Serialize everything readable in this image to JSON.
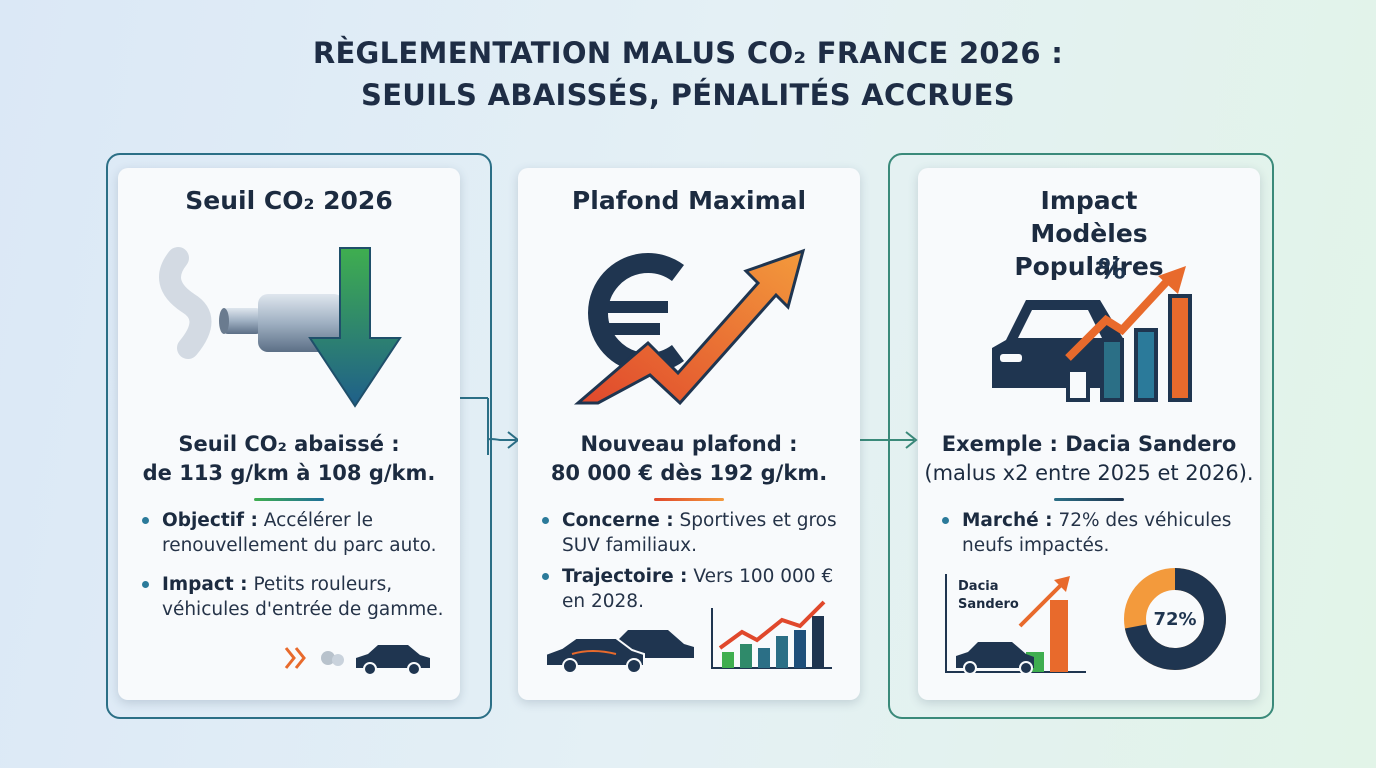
{
  "header": {
    "title_line1": "RÈGLEMENTATION MALUS CO₂ FRANCE 2026 :",
    "title_line2": "SEUILS ABAISSÉS, PÉNALITÉS ACCRUES"
  },
  "cards": [
    {
      "title": "Seuil CO₂ 2026",
      "headline": [
        "Seuil CO₂ abaissé :",
        "de 113 g/km à 108 g/km."
      ],
      "bullets": [
        {
          "label": "Objectif :",
          "text": "Accélérer le renouvellement du parc auto."
        },
        {
          "label": "Impact :",
          "text": "Petits rouleurs, véhicules d'entrée de gamme."
        }
      ]
    },
    {
      "title": "Plafond Maximal",
      "headline": [
        "Nouveau plafond :",
        "80 000 € dès 192 g/km."
      ],
      "bullets": [
        {
          "label": "Concerne :",
          "text": "Sportives et gros SUV familiaux."
        },
        {
          "label": "Trajectoire :",
          "text": "Vers 100 000 € en 2028."
        }
      ]
    },
    {
      "title": "Impact Modèles Populaires",
      "headline": [
        "Exemple : Dacia Sandero",
        "(malus x2 entre 2025 et 2026)."
      ],
      "bullets": [
        {
          "label": "Marché :",
          "text": "72% des véhicules neufs impactés."
        }
      ],
      "chart_label": "Dacia Sandero",
      "donut": {
        "value": 72,
        "label": "72%"
      }
    }
  ]
}
